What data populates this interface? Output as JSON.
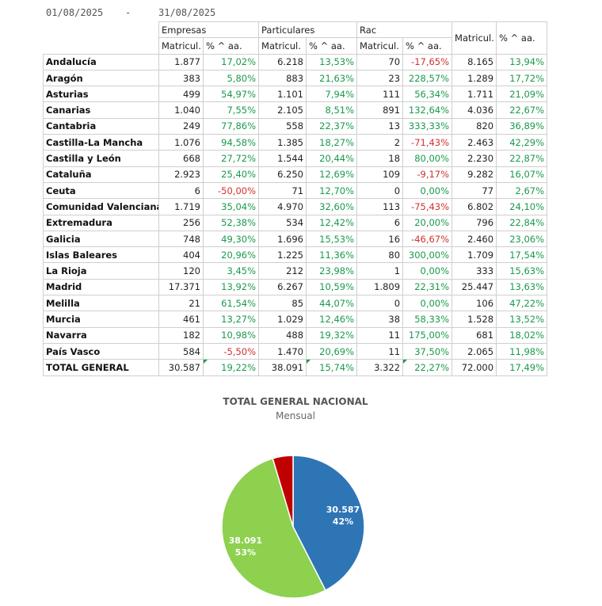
{
  "date_range": {
    "from": "01/08/2025",
    "separator": "-",
    "to": "31/08/2025"
  },
  "table": {
    "groups": [
      "Empresas",
      "Particulares",
      "Rac"
    ],
    "subheaders": [
      "Matricul.",
      "% ^ aa.",
      "Matricul.",
      "% ^ aa.",
      "Matricul.",
      "% ^ aa."
    ],
    "total_headers": [
      "Matricul.",
      "% ^ aa."
    ],
    "rows": [
      [
        "Andalucía",
        "1.877",
        "17,02%",
        "6.218",
        "13,53%",
        "70",
        "-17,65%",
        "8.165",
        "13,94%"
      ],
      [
        "Aragón",
        "383",
        "5,80%",
        "883",
        "21,63%",
        "23",
        "228,57%",
        "1.289",
        "17,72%"
      ],
      [
        "Asturias",
        "499",
        "54,97%",
        "1.101",
        "7,94%",
        "111",
        "56,34%",
        "1.711",
        "21,09%"
      ],
      [
        "Canarias",
        "1.040",
        "7,55%",
        "2.105",
        "8,51%",
        "891",
        "132,64%",
        "4.036",
        "22,67%"
      ],
      [
        "Cantabria",
        "249",
        "77,86%",
        "558",
        "22,37%",
        "13",
        "333,33%",
        "820",
        "36,89%"
      ],
      [
        "Castilla-La Mancha",
        "1.076",
        "94,58%",
        "1.385",
        "18,27%",
        "2",
        "-71,43%",
        "2.463",
        "42,29%"
      ],
      [
        "Castilla y León",
        "668",
        "27,72%",
        "1.544",
        "20,44%",
        "18",
        "80,00%",
        "2.230",
        "22,87%"
      ],
      [
        "Cataluña",
        "2.923",
        "25,40%",
        "6.250",
        "12,69%",
        "109",
        "-9,17%",
        "9.282",
        "16,07%"
      ],
      [
        "Ceuta",
        "6",
        "-50,00%",
        "71",
        "12,70%",
        "0",
        "0,00%",
        "77",
        "2,67%"
      ],
      [
        "Comunidad Valenciana",
        "1.719",
        "35,04%",
        "4.970",
        "32,60%",
        "113",
        "-75,43%",
        "6.802",
        "24,10%"
      ],
      [
        "Extremadura",
        "256",
        "52,38%",
        "534",
        "12,42%",
        "6",
        "20,00%",
        "796",
        "22,84%"
      ],
      [
        "Galicia",
        "748",
        "49,30%",
        "1.696",
        "15,53%",
        "16",
        "-46,67%",
        "2.460",
        "23,06%"
      ],
      [
        "Islas Baleares",
        "404",
        "20,96%",
        "1.225",
        "11,36%",
        "80",
        "300,00%",
        "1.709",
        "17,54%"
      ],
      [
        "La Rioja",
        "120",
        "3,45%",
        "212",
        "23,98%",
        "1",
        "0,00%",
        "333",
        "15,63%"
      ],
      [
        "Madrid",
        "17.371",
        "13,92%",
        "6.267",
        "10,59%",
        "1.809",
        "22,31%",
        "25.447",
        "13,63%"
      ],
      [
        "Melilla",
        "21",
        "61,54%",
        "85",
        "44,07%",
        "0",
        "0,00%",
        "106",
        "47,22%"
      ],
      [
        "Murcia",
        "461",
        "13,27%",
        "1.029",
        "12,46%",
        "38",
        "58,33%",
        "1.528",
        "13,52%"
      ],
      [
        "Navarra",
        "182",
        "10,98%",
        "488",
        "19,32%",
        "11",
        "175,00%",
        "681",
        "18,02%"
      ],
      [
        "País Vasco",
        "584",
        "-5,50%",
        "1.470",
        "20,69%",
        "11",
        "37,50%",
        "2.065",
        "11,98%"
      ]
    ],
    "total_row": [
      "TOTAL GENERAL",
      "30.587",
      "19,22%",
      "38.091",
      "15,74%",
      "3.322",
      "22,27%",
      "72.000",
      "17,49%"
    ],
    "colors": {
      "positive": "#1a9a4a",
      "negative": "#d0312d"
    }
  },
  "chart_data": {
    "type": "pie",
    "title": "TOTAL GENERAL NACIONAL",
    "subtitle": "Mensual",
    "slices": [
      {
        "value": 30587,
        "label": "30.587",
        "percent_label": "42%",
        "color": "#2e75b6"
      },
      {
        "value": 38091,
        "label": "38.091",
        "percent_label": "53%",
        "color": "#8dd14f"
      },
      {
        "value": 3322,
        "label": "",
        "percent_label": "",
        "color": "#c00000"
      }
    ]
  }
}
